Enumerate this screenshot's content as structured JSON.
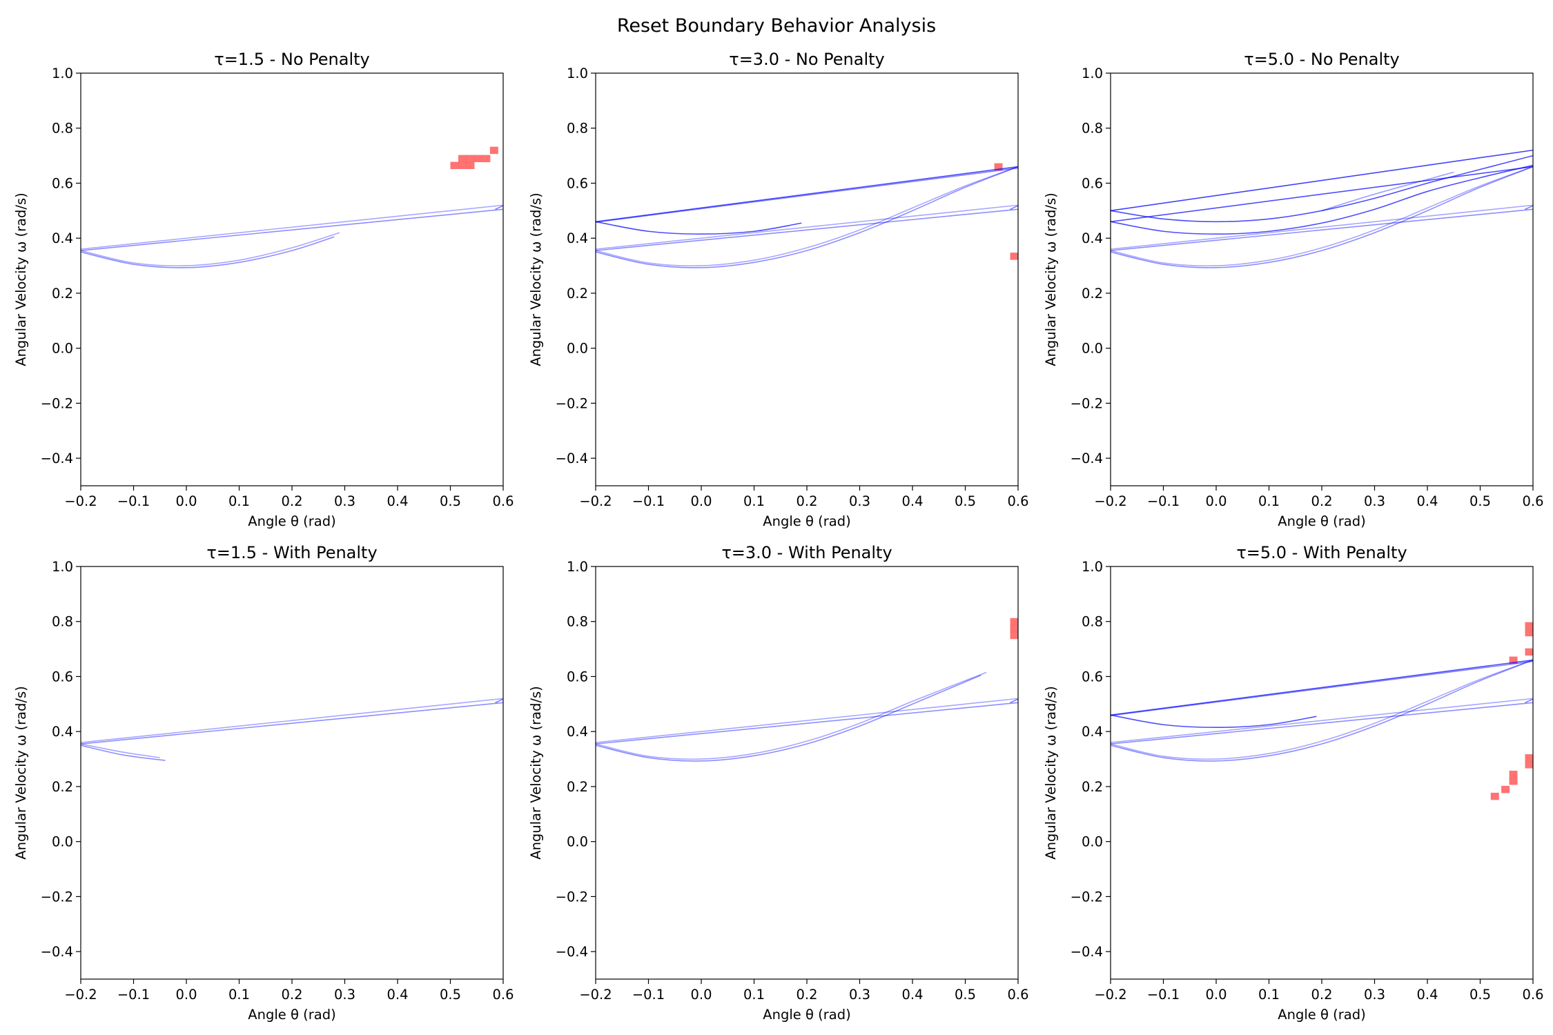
{
  "figure": {
    "title": "Reset Boundary Behavior Analysis"
  },
  "colors": {
    "trajectory": "#0000ff",
    "reset_cell": "#ff5a5a",
    "axes": "#000000"
  },
  "chart_data": [
    {
      "type": "line",
      "title": "τ=1.5 - No Penalty",
      "xlabel": "Angle θ (rad)",
      "ylabel": "Angular Velocity ω (rad/s)",
      "xlim": [
        -0.2,
        0.6
      ],
      "ylim": [
        -0.5,
        1.0
      ],
      "xticks": [
        "−0.2",
        "−0.1",
        "0.0",
        "0.1",
        "0.2",
        "0.3",
        "0.4",
        "0.5",
        "0.6"
      ],
      "yticks": [
        "−0.4",
        "−0.2",
        "0.0",
        "0.2",
        "0.4",
        "0.6",
        "0.8",
        "1.0"
      ],
      "grid": false,
      "trajectories": [
        {
          "x": [
            -0.2,
            0.6
          ],
          "y": [
            0.36,
            0.52
          ],
          "alpha": 0.35
        },
        {
          "x": [
            -0.2,
            0.6
          ],
          "y": [
            0.355,
            0.505
          ],
          "alpha": 0.45
        },
        {
          "x": [
            -0.2,
            -0.1,
            0.0,
            0.1,
            0.2,
            0.29
          ],
          "y": [
            0.355,
            0.31,
            0.3,
            0.32,
            0.365,
            0.42
          ],
          "alpha": 0.35
        },
        {
          "x": [
            -0.2,
            -0.1,
            0.0,
            0.1,
            0.2,
            0.28
          ],
          "y": [
            0.35,
            0.305,
            0.293,
            0.312,
            0.355,
            0.405
          ],
          "alpha": 0.45
        },
        {
          "x": [
            0.585,
            0.6
          ],
          "y": [
            0.505,
            0.518
          ],
          "alpha": 0.5
        }
      ],
      "reset_cells": [
        {
          "x": 0.5075,
          "y": 0.665
        },
        {
          "x": 0.5225,
          "y": 0.665
        },
        {
          "x": 0.5375,
          "y": 0.665
        },
        {
          "x": 0.5225,
          "y": 0.69
        },
        {
          "x": 0.5375,
          "y": 0.69
        },
        {
          "x": 0.5525,
          "y": 0.69
        },
        {
          "x": 0.5675,
          "y": 0.69
        },
        {
          "x": 0.5825,
          "y": 0.72
        }
      ]
    },
    {
      "type": "line",
      "title": "τ=3.0 - No Penalty",
      "xlabel": "Angle θ (rad)",
      "ylabel": "Angular Velocity ω (rad/s)",
      "xlim": [
        -0.2,
        0.6
      ],
      "ylim": [
        -0.5,
        1.0
      ],
      "xticks": [
        "−0.2",
        "−0.1",
        "0.0",
        "0.1",
        "0.2",
        "0.3",
        "0.4",
        "0.5",
        "0.6"
      ],
      "yticks": [
        "−0.4",
        "−0.2",
        "0.0",
        "0.2",
        "0.4",
        "0.6",
        "0.8",
        "1.0"
      ],
      "grid": false,
      "trajectories": [
        {
          "x": [
            -0.2,
            0.6
          ],
          "y": [
            0.36,
            0.52
          ],
          "alpha": 0.35
        },
        {
          "x": [
            -0.2,
            0.6
          ],
          "y": [
            0.355,
            0.505
          ],
          "alpha": 0.45
        },
        {
          "x": [
            -0.2,
            -0.1,
            0.0,
            0.1,
            0.2,
            0.3,
            0.4,
            0.5,
            0.6
          ],
          "y": [
            0.355,
            0.31,
            0.3,
            0.32,
            0.365,
            0.43,
            0.51,
            0.59,
            0.66
          ],
          "alpha": 0.35
        },
        {
          "x": [
            -0.2,
            -0.1,
            0.0,
            0.1,
            0.2,
            0.3,
            0.4,
            0.5,
            0.6
          ],
          "y": [
            0.35,
            0.305,
            0.293,
            0.312,
            0.355,
            0.42,
            0.5,
            0.585,
            0.66
          ],
          "alpha": 0.45
        },
        {
          "x": [
            -0.2,
            0.6
          ],
          "y": [
            0.46,
            0.66
          ],
          "alpha": 0.7
        },
        {
          "x": [
            -0.2,
            0.6
          ],
          "y": [
            0.458,
            0.655
          ],
          "alpha": 0.5
        },
        {
          "x": [
            -0.2,
            -0.1,
            0.0,
            0.1,
            0.19
          ],
          "y": [
            0.46,
            0.425,
            0.415,
            0.425,
            0.455
          ],
          "alpha": 0.7
        },
        {
          "x": [
            0.585,
            0.6
          ],
          "y": [
            0.505,
            0.518
          ],
          "alpha": 0.5
        }
      ],
      "reset_cells": [
        {
          "x": 0.5625,
          "y": 0.66
        },
        {
          "x": 0.5925,
          "y": 0.335
        }
      ]
    },
    {
      "type": "line",
      "title": "τ=5.0 - No Penalty",
      "xlabel": "Angle θ (rad)",
      "ylabel": "Angular Velocity ω (rad/s)",
      "xlim": [
        -0.2,
        0.6
      ],
      "ylim": [
        -0.5,
        1.0
      ],
      "xticks": [
        "−0.2",
        "−0.1",
        "0.0",
        "0.1",
        "0.2",
        "0.3",
        "0.4",
        "0.5",
        "0.6"
      ],
      "yticks": [
        "−0.4",
        "−0.2",
        "0.0",
        "0.2",
        "0.4",
        "0.6",
        "0.8",
        "1.0"
      ],
      "grid": false,
      "trajectories": [
        {
          "x": [
            -0.2,
            0.6
          ],
          "y": [
            0.36,
            0.52
          ],
          "alpha": 0.35
        },
        {
          "x": [
            -0.2,
            0.6
          ],
          "y": [
            0.355,
            0.505
          ],
          "alpha": 0.45
        },
        {
          "x": [
            -0.2,
            -0.1,
            0.0,
            0.1,
            0.2,
            0.3,
            0.4,
            0.5,
            0.6
          ],
          "y": [
            0.355,
            0.31,
            0.3,
            0.32,
            0.365,
            0.43,
            0.51,
            0.59,
            0.66
          ],
          "alpha": 0.35
        },
        {
          "x": [
            -0.2,
            -0.1,
            0.0,
            0.1,
            0.2,
            0.3,
            0.4,
            0.5,
            0.6
          ],
          "y": [
            0.35,
            0.305,
            0.293,
            0.312,
            0.355,
            0.42,
            0.5,
            0.585,
            0.66
          ],
          "alpha": 0.45
        },
        {
          "x": [
            -0.2,
            0.6
          ],
          "y": [
            0.46,
            0.66
          ],
          "alpha": 0.7
        },
        {
          "x": [
            -0.2,
            0.6
          ],
          "y": [
            0.5,
            0.72
          ],
          "alpha": 0.75
        },
        {
          "x": [
            -0.2,
            -0.1,
            0.0,
            0.1,
            0.2,
            0.3,
            0.4,
            0.5,
            0.6
          ],
          "y": [
            0.5,
            0.47,
            0.46,
            0.47,
            0.5,
            0.545,
            0.6,
            0.65,
            0.7
          ],
          "alpha": 0.7
        },
        {
          "x": [
            -0.2,
            -0.1,
            0.0,
            0.1,
            0.2,
            0.3,
            0.4,
            0.5,
            0.6
          ],
          "y": [
            0.46,
            0.425,
            0.415,
            0.425,
            0.455,
            0.505,
            0.57,
            0.62,
            0.665
          ],
          "alpha": 0.7
        },
        {
          "x": [
            0.2,
            0.3,
            0.45
          ],
          "y": [
            0.5,
            0.56,
            0.64
          ],
          "alpha": 0.4
        },
        {
          "x": [
            0.585,
            0.6
          ],
          "y": [
            0.505,
            0.518
          ],
          "alpha": 0.5
        }
      ],
      "reset_cells": []
    },
    {
      "type": "line",
      "title": "τ=1.5 - With Penalty",
      "xlabel": "Angle θ (rad)",
      "ylabel": "Angular Velocity ω (rad/s)",
      "xlim": [
        -0.2,
        0.6
      ],
      "ylim": [
        -0.5,
        1.0
      ],
      "xticks": [
        "−0.2",
        "−0.1",
        "0.0",
        "0.1",
        "0.2",
        "0.3",
        "0.4",
        "0.5",
        "0.6"
      ],
      "yticks": [
        "−0.4",
        "−0.2",
        "0.0",
        "0.2",
        "0.4",
        "0.6",
        "0.8",
        "1.0"
      ],
      "grid": false,
      "trajectories": [
        {
          "x": [
            -0.2,
            0.6
          ],
          "y": [
            0.36,
            0.52
          ],
          "alpha": 0.35
        },
        {
          "x": [
            -0.2,
            0.6
          ],
          "y": [
            0.355,
            0.505
          ],
          "alpha": 0.45
        },
        {
          "x": [
            -0.2,
            -0.12,
            -0.05
          ],
          "y": [
            0.355,
            0.325,
            0.305
          ],
          "alpha": 0.35
        },
        {
          "x": [
            -0.2,
            -0.12,
            -0.04
          ],
          "y": [
            0.35,
            0.315,
            0.295
          ],
          "alpha": 0.45
        },
        {
          "x": [
            0.585,
            0.6
          ],
          "y": [
            0.505,
            0.518
          ],
          "alpha": 0.5
        }
      ],
      "reset_cells": []
    },
    {
      "type": "line",
      "title": "τ=3.0 - With Penalty",
      "xlabel": "Angle θ (rad)",
      "ylabel": "Angular Velocity ω (rad/s)",
      "xlim": [
        -0.2,
        0.6
      ],
      "ylim": [
        -0.5,
        1.0
      ],
      "xticks": [
        "−0.2",
        "−0.1",
        "0.0",
        "0.1",
        "0.2",
        "0.3",
        "0.4",
        "0.5",
        "0.6"
      ],
      "yticks": [
        "−0.4",
        "−0.2",
        "0.0",
        "0.2",
        "0.4",
        "0.6",
        "0.8",
        "1.0"
      ],
      "grid": false,
      "trajectories": [
        {
          "x": [
            -0.2,
            0.6
          ],
          "y": [
            0.36,
            0.52
          ],
          "alpha": 0.35
        },
        {
          "x": [
            -0.2,
            0.6
          ],
          "y": [
            0.355,
            0.505
          ],
          "alpha": 0.45
        },
        {
          "x": [
            -0.2,
            -0.1,
            0.0,
            0.1,
            0.2,
            0.3,
            0.4,
            0.54
          ],
          "y": [
            0.355,
            0.31,
            0.3,
            0.32,
            0.365,
            0.43,
            0.51,
            0.615
          ],
          "alpha": 0.35
        },
        {
          "x": [
            -0.2,
            -0.1,
            0.0,
            0.1,
            0.2,
            0.3,
            0.4,
            0.53
          ],
          "y": [
            0.35,
            0.305,
            0.293,
            0.312,
            0.355,
            0.42,
            0.5,
            0.605
          ],
          "alpha": 0.45
        },
        {
          "x": [
            0.585,
            0.6
          ],
          "y": [
            0.505,
            0.518
          ],
          "alpha": 0.5
        }
      ],
      "reset_cells": [
        {
          "x": 0.5925,
          "y": 0.75
        },
        {
          "x": 0.5925,
          "y": 0.775
        },
        {
          "x": 0.5925,
          "y": 0.8
        }
      ]
    },
    {
      "type": "line",
      "title": "τ=5.0 - With Penalty",
      "xlabel": "Angle θ (rad)",
      "ylabel": "Angular Velocity ω (rad/s)",
      "xlim": [
        -0.2,
        0.6
      ],
      "ylim": [
        -0.5,
        1.0
      ],
      "xticks": [
        "−0.2",
        "−0.1",
        "0.0",
        "0.1",
        "0.2",
        "0.3",
        "0.4",
        "0.5",
        "0.6"
      ],
      "yticks": [
        "−0.4",
        "−0.2",
        "0.0",
        "0.2",
        "0.4",
        "0.6",
        "0.8",
        "1.0"
      ],
      "grid": false,
      "trajectories": [
        {
          "x": [
            -0.2,
            0.6
          ],
          "y": [
            0.36,
            0.52
          ],
          "alpha": 0.35
        },
        {
          "x": [
            -0.2,
            0.6
          ],
          "y": [
            0.355,
            0.505
          ],
          "alpha": 0.45
        },
        {
          "x": [
            -0.2,
            -0.1,
            0.0,
            0.1,
            0.2,
            0.3,
            0.4,
            0.5,
            0.6
          ],
          "y": [
            0.355,
            0.31,
            0.3,
            0.32,
            0.365,
            0.43,
            0.51,
            0.59,
            0.66
          ],
          "alpha": 0.35
        },
        {
          "x": [
            -0.2,
            -0.1,
            0.0,
            0.1,
            0.2,
            0.3,
            0.4,
            0.5,
            0.6
          ],
          "y": [
            0.35,
            0.305,
            0.293,
            0.312,
            0.355,
            0.42,
            0.5,
            0.585,
            0.66
          ],
          "alpha": 0.45
        },
        {
          "x": [
            -0.2,
            0.6
          ],
          "y": [
            0.46,
            0.66
          ],
          "alpha": 0.7
        },
        {
          "x": [
            -0.2,
            0.6
          ],
          "y": [
            0.458,
            0.655
          ],
          "alpha": 0.5
        },
        {
          "x": [
            -0.2,
            -0.1,
            0.0,
            0.1,
            0.19
          ],
          "y": [
            0.46,
            0.425,
            0.415,
            0.425,
            0.455
          ],
          "alpha": 0.7
        },
        {
          "x": [
            0.585,
            0.6
          ],
          "y": [
            0.505,
            0.518
          ],
          "alpha": 0.5
        }
      ],
      "reset_cells": [
        {
          "x": 0.5925,
          "y": 0.76
        },
        {
          "x": 0.5925,
          "y": 0.785
        },
        {
          "x": 0.5925,
          "y": 0.69
        },
        {
          "x": 0.5625,
          "y": 0.66
        },
        {
          "x": 0.5925,
          "y": 0.28
        },
        {
          "x": 0.5925,
          "y": 0.305
        },
        {
          "x": 0.5625,
          "y": 0.22
        },
        {
          "x": 0.5625,
          "y": 0.245
        },
        {
          "x": 0.5475,
          "y": 0.19
        },
        {
          "x": 0.5275,
          "y": 0.165
        }
      ]
    }
  ]
}
